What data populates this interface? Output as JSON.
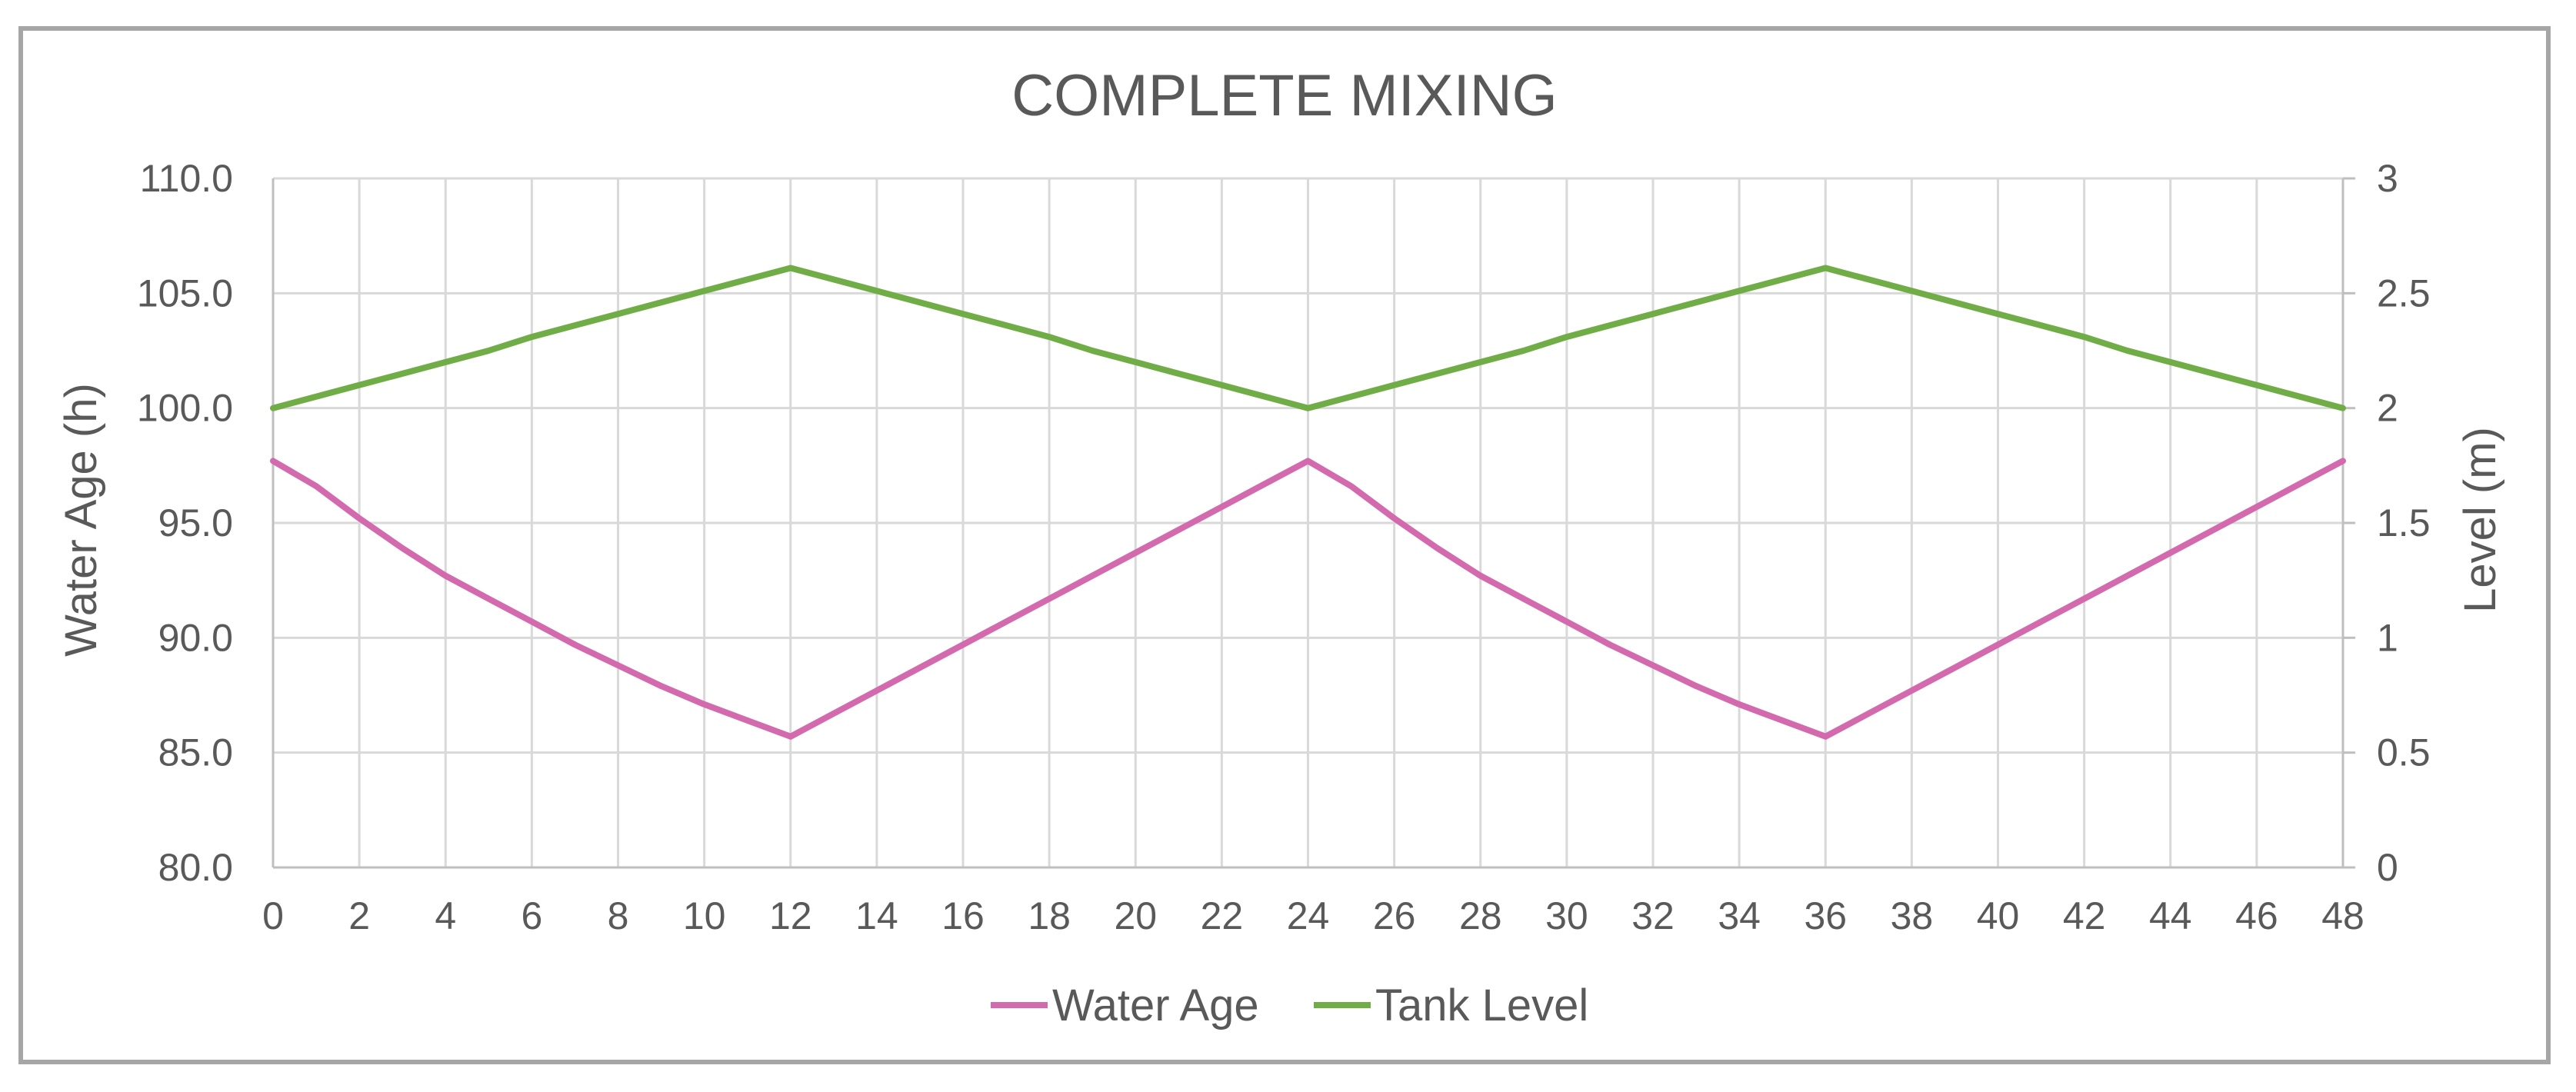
{
  "chart_data": {
    "type": "line",
    "title": "COMPLETE MIXING",
    "xlabel": "",
    "ylabel": "Water Age (h)",
    "y2label": "Level (m)",
    "x": [
      0,
      1,
      2,
      3,
      4,
      5,
      6,
      7,
      8,
      9,
      10,
      11,
      12,
      13,
      14,
      15,
      16,
      17,
      18,
      19,
      20,
      21,
      22,
      23,
      24,
      25,
      26,
      27,
      28,
      29,
      30,
      31,
      32,
      33,
      34,
      35,
      36,
      37,
      38,
      39,
      40,
      41,
      42,
      43,
      44,
      45,
      46,
      47,
      48
    ],
    "xlim": [
      0,
      48
    ],
    "xticks": [
      "0",
      "2",
      "4",
      "6",
      "8",
      "10",
      "12",
      "14",
      "16",
      "18",
      "20",
      "22",
      "24",
      "26",
      "28",
      "30",
      "32",
      "34",
      "36",
      "38",
      "40",
      "42",
      "44",
      "46",
      "48"
    ],
    "ylim": [
      80,
      110
    ],
    "yticks": [
      "80.0",
      "85.0",
      "90.0",
      "95.0",
      "100.0",
      "105.0",
      "110.0"
    ],
    "y2lim": [
      0,
      3
    ],
    "y2ticks": [
      "0",
      "0.5",
      "1",
      "1.5",
      "2",
      "2.5",
      "3"
    ],
    "grid": true,
    "legend_position": "bottom",
    "series": [
      {
        "name": "Water Age",
        "axis": "left",
        "color": "#d46aae",
        "values": [
          97.7,
          96.6,
          95.2,
          93.9,
          92.7,
          91.7,
          90.7,
          89.7,
          88.8,
          87.9,
          87.1,
          86.4,
          85.7,
          86.7,
          87.7,
          88.7,
          89.7,
          90.7,
          91.7,
          92.7,
          93.7,
          94.7,
          95.7,
          96.7,
          97.7,
          96.6,
          95.2,
          93.9,
          92.7,
          91.7,
          90.7,
          89.7,
          88.8,
          87.9,
          87.1,
          86.4,
          85.7,
          86.7,
          87.7,
          88.7,
          89.7,
          90.7,
          91.7,
          92.7,
          93.7,
          94.7,
          95.7,
          96.7,
          97.7
        ]
      },
      {
        "name": "Tank Level",
        "axis": "right",
        "color": "#70ad47",
        "values": [
          2.0,
          2.05,
          2.1,
          2.15,
          2.2,
          2.25,
          2.31,
          2.36,
          2.41,
          2.46,
          2.51,
          2.56,
          2.61,
          2.56,
          2.51,
          2.46,
          2.41,
          2.36,
          2.31,
          2.25,
          2.2,
          2.15,
          2.1,
          2.05,
          2.0,
          2.05,
          2.1,
          2.15,
          2.2,
          2.25,
          2.31,
          2.36,
          2.41,
          2.46,
          2.51,
          2.56,
          2.61,
          2.56,
          2.51,
          2.46,
          2.41,
          2.36,
          2.31,
          2.25,
          2.2,
          2.15,
          2.1,
          2.05,
          2.0
        ]
      }
    ]
  }
}
